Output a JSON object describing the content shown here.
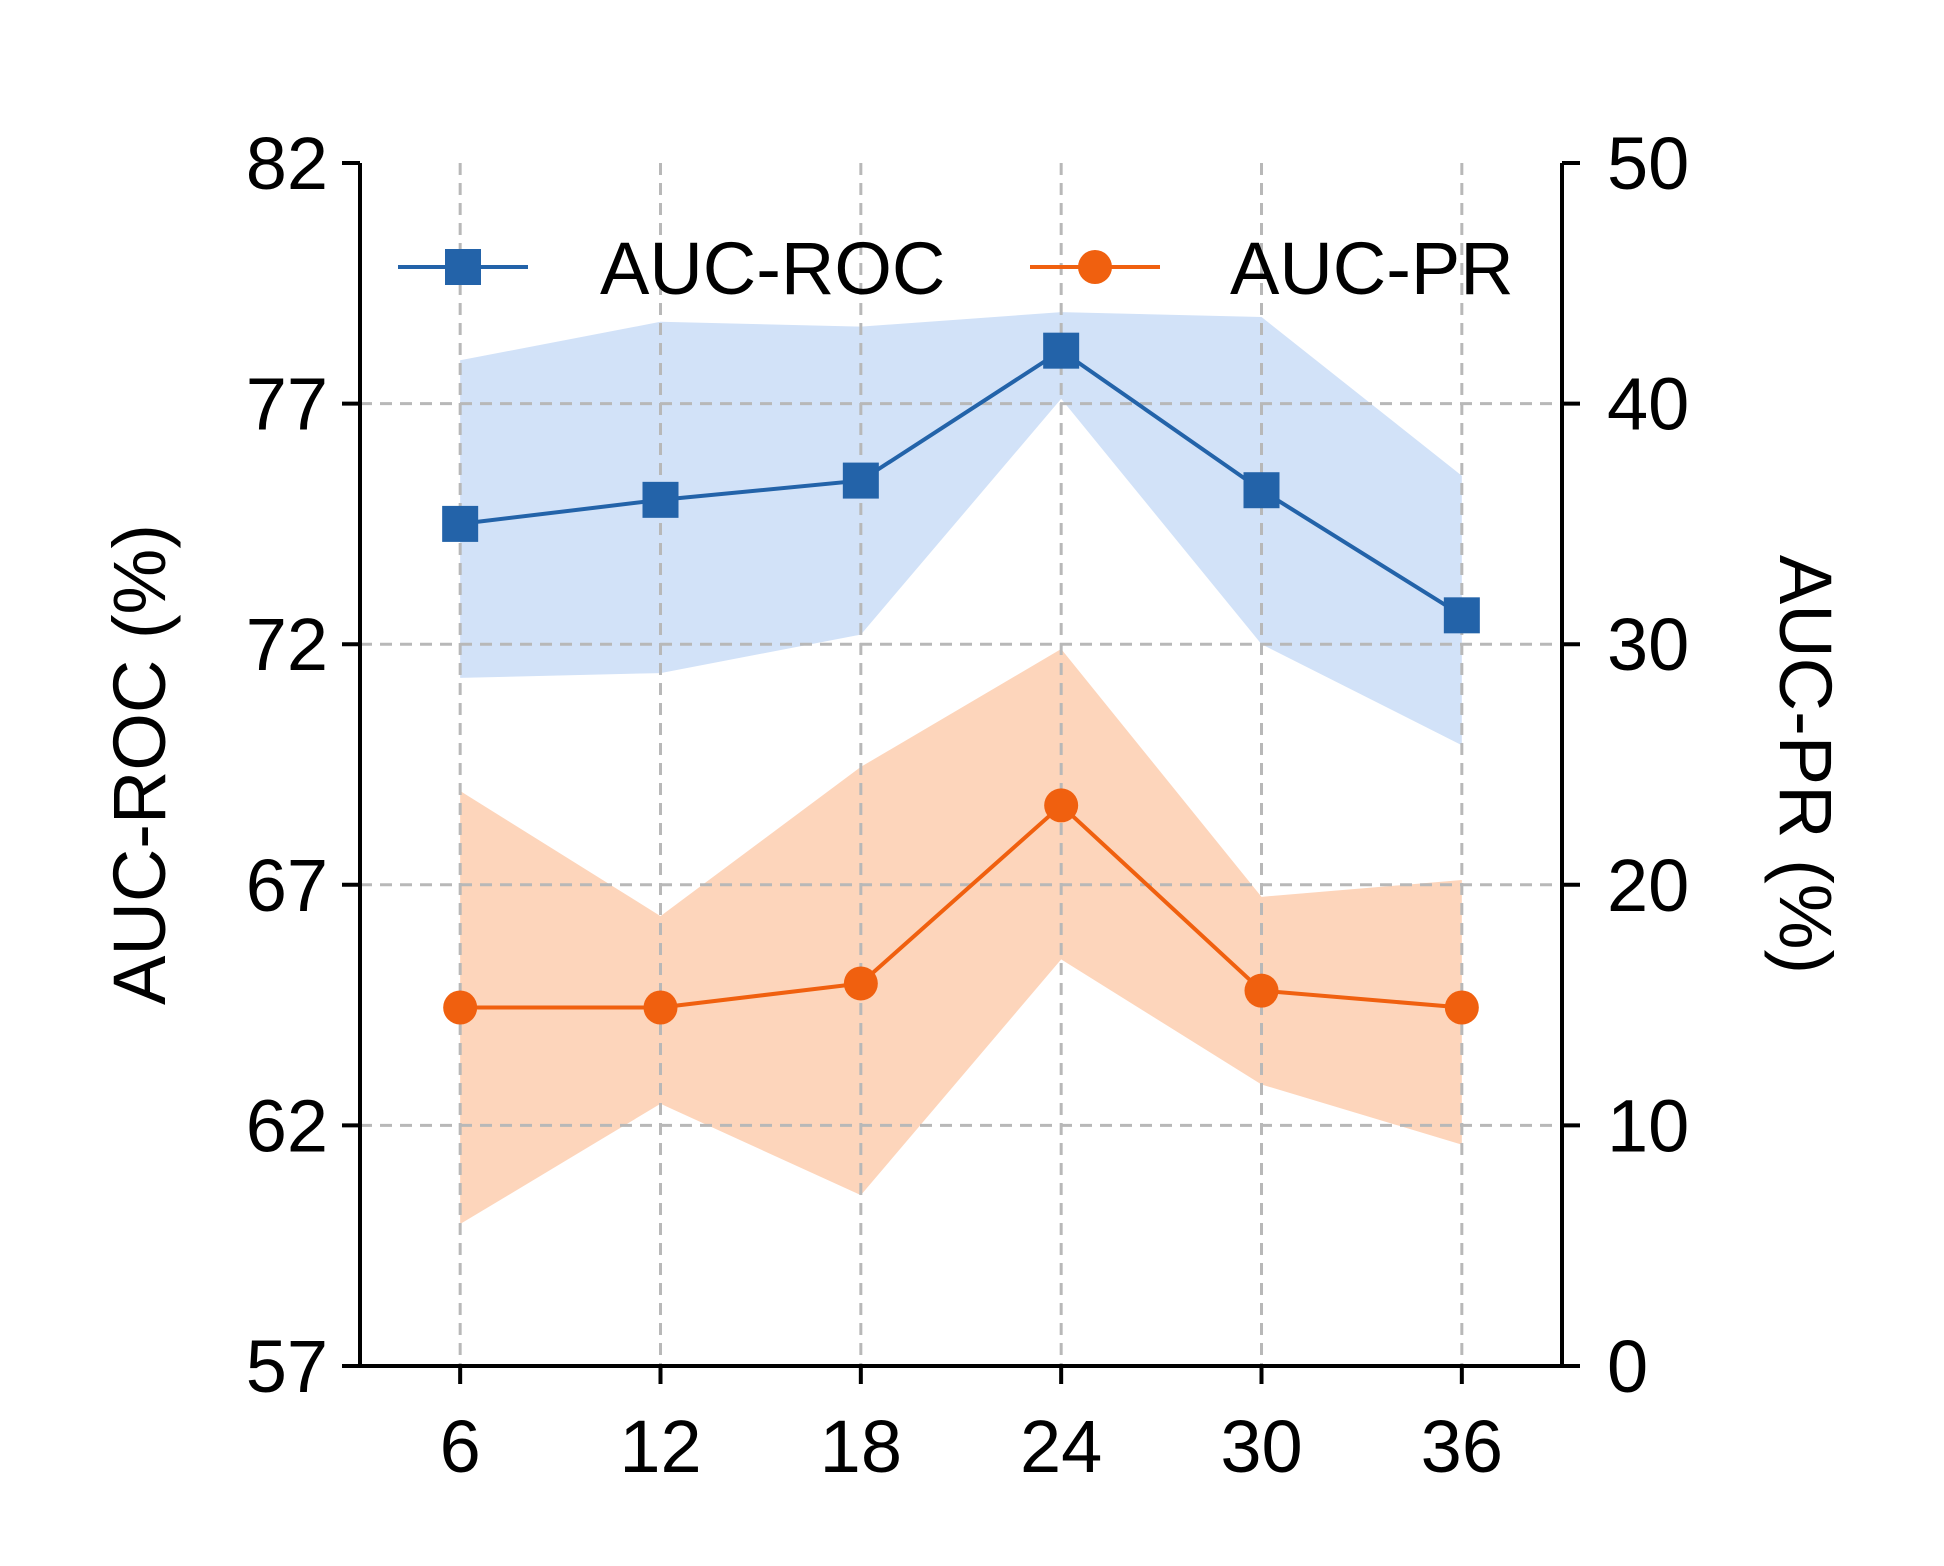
{
  "chart_data": {
    "type": "line",
    "x": [
      6,
      12,
      18,
      24,
      30,
      36
    ],
    "x_ticks": [
      "6",
      "12",
      "18",
      "24",
      "30",
      "36"
    ],
    "xlim": [
      3,
      39
    ],
    "left_axis": {
      "label": "AUC-ROC (%)",
      "ylim": [
        57,
        82
      ],
      "ticks": [
        57,
        62,
        67,
        72,
        77,
        82
      ]
    },
    "right_axis": {
      "label": "AUC-PR (%)",
      "ylim": [
        0,
        50
      ],
      "ticks": [
        0,
        10,
        20,
        30,
        40,
        50
      ]
    },
    "series": [
      {
        "name": "AUC-ROC",
        "axis": "left",
        "color": "#2363a9",
        "band_color": "#d2e2f8",
        "marker": "square",
        "values": [
          74.5,
          75.0,
          75.4,
          78.1,
          75.2,
          72.6
        ],
        "upper": [
          77.9,
          78.7,
          78.6,
          78.9,
          78.8,
          75.5
        ],
        "lower": [
          71.3,
          71.4,
          72.2,
          77.1,
          72.0,
          69.9
        ]
      },
      {
        "name": "AUC-PR",
        "axis": "right",
        "color": "#f0600f",
        "band_color": "#fdd5bb",
        "marker": "circle",
        "values": [
          14.9,
          14.9,
          15.9,
          23.3,
          15.6,
          14.9
        ],
        "upper": [
          23.9,
          18.7,
          24.9,
          29.8,
          19.5,
          20.2
        ],
        "lower": [
          5.9,
          10.9,
          7.1,
          16.9,
          11.7,
          9.2
        ]
      }
    ],
    "grid": true,
    "legend": "top"
  }
}
